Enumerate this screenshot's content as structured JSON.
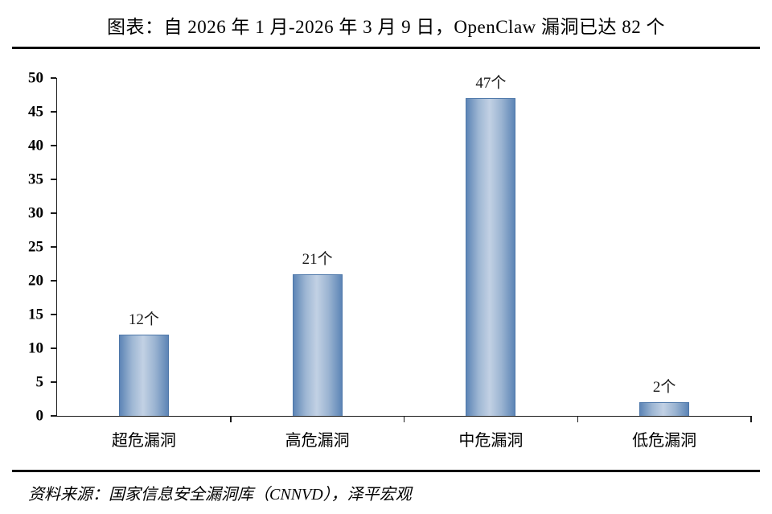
{
  "title": "图表：自 2026 年 1 月-2026 年 3 月 9 日，OpenClaw 漏洞已达 82 个",
  "source": "资料来源：国家信息安全漏洞库（CNNVD），泽平宏观",
  "chart_data": {
    "type": "bar",
    "title": "自 2026 年 1 月-2026 年 3 月 9 日，OpenClaw 漏洞已达 82 个",
    "categories": [
      "超危漏洞",
      "高危漏洞",
      "中危漏洞",
      "低危漏洞"
    ],
    "values": [
      12,
      21,
      47,
      2
    ],
    "data_labels": [
      "12个",
      "21个",
      "47个",
      "2个"
    ],
    "total_label": "82 个",
    "xlabel": "",
    "ylabel": "",
    "ylim": [
      0,
      50
    ],
    "y_ticks": [
      0,
      5,
      10,
      15,
      20,
      25,
      30,
      35,
      40,
      45,
      50
    ],
    "grid": false,
    "legend": "none",
    "bar_color": "#5d85b6",
    "bar_gradient": [
      "#5d85b6",
      "#c2d1e4",
      "#5d85b6"
    ],
    "axis_color": "#1a1a1a"
  }
}
